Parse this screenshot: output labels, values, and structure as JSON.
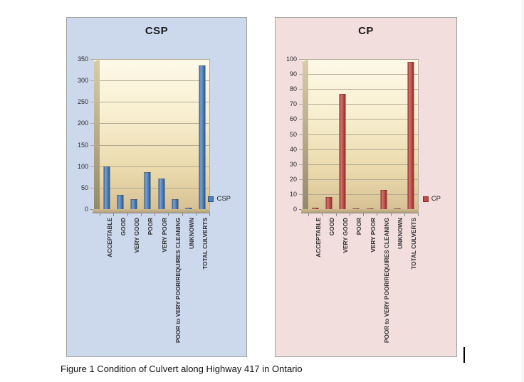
{
  "page": {
    "caption": "Figure 1 Condition of Culvert along Highway 417 in Ontario"
  },
  "chart_data": [
    {
      "type": "bar",
      "title": "CSP",
      "categories": [
        "ACCEPTABLE",
        "GOOD",
        "VERY GOOD",
        "POOR",
        "VERY POOR",
        "POOR to VERY POOR/REQUIRES CLEANING",
        "UNKNOWN",
        "TOTAL CULVERTS"
      ],
      "series": [
        {
          "name": "CSP",
          "values": [
            100,
            33,
            23,
            87,
            72,
            24,
            4,
            335
          ]
        }
      ],
      "xlabel": "",
      "ylabel": "",
      "ylim": [
        0,
        350
      ],
      "ytick_step": 50,
      "grid": true,
      "legend_position": "right",
      "colors": {
        "panel_bg": "#ccd9ec",
        "bar_main": "#4f81bd",
        "bar_light": "#7ba2d4",
        "bar_dark": "#2c4f78"
      }
    },
    {
      "type": "bar",
      "title": "CP",
      "categories": [
        "ACCEPTABLE",
        "GOOD",
        "VERY GOOD",
        "POOR",
        "VERY POOR",
        "POOR to VERY POOR/REQUIRES CLEANING",
        "UNKNOWN",
        "TOTAL CULVERTS"
      ],
      "series": [
        {
          "name": "CP",
          "values": [
            1,
            8,
            77,
            0.5,
            0.5,
            13,
            0.5,
            98
          ]
        }
      ],
      "xlabel": "",
      "ylabel": "",
      "ylim": [
        0,
        100
      ],
      "ytick_step": 10,
      "grid": true,
      "legend_position": "right",
      "colors": {
        "panel_bg": "#f2dedd",
        "bar_main": "#bf4e49",
        "bar_light": "#d4736d",
        "bar_dark": "#822a26"
      }
    }
  ]
}
